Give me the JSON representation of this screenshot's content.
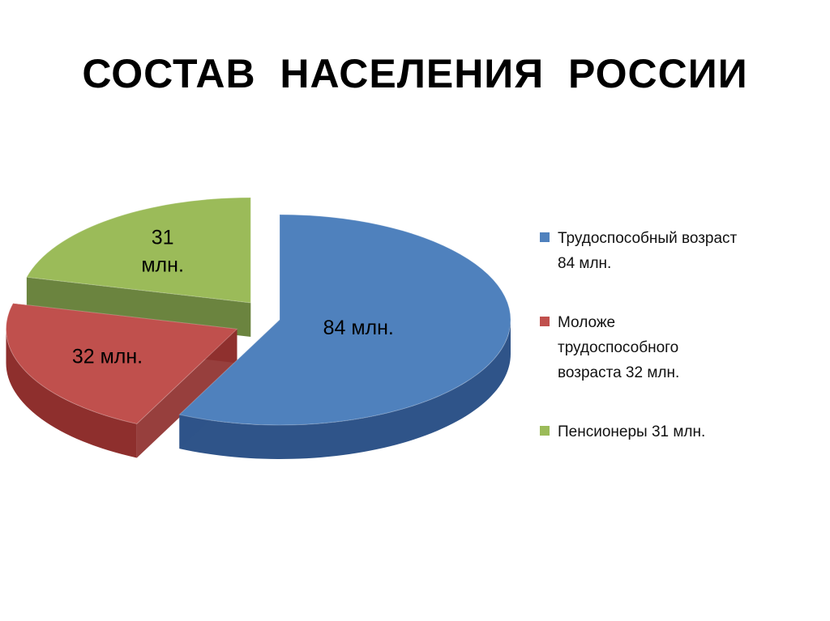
{
  "title": "СОСТАВ  НАСЕЛЕНИЯ  РОССИИ",
  "chart_data": {
    "type": "pie",
    "title": "СОСТАВ  НАСЕЛЕНИЯ  РОССИИ",
    "unit": "млн.",
    "legend_position": "right",
    "slices": [
      {
        "name": "Трудоспособный возраст",
        "value": 84,
        "label": "84 млн.",
        "legend_lines": [
          "Трудоспособный возраст",
          "84 млн."
        ],
        "color": "#4F81BD",
        "side_color": "#2F5489",
        "exploded": false
      },
      {
        "name": "Моложе трудоспособного возраста",
        "value": 32,
        "label": "32 млн.",
        "legend_lines": [
          "Моложе",
          "трудоспособного",
          "возраста 32 млн."
        ],
        "color": "#C0504D",
        "side_color": "#8E2F2D",
        "exploded": true
      },
      {
        "name": "Пенсионеры",
        "value": 31,
        "label_lines": [
          "31",
          "млн."
        ],
        "legend_lines": [
          "Пенсионеры 31 млн."
        ],
        "color": "#9BBB59",
        "side_color": "#5E7A2F",
        "exploded": true
      }
    ]
  }
}
